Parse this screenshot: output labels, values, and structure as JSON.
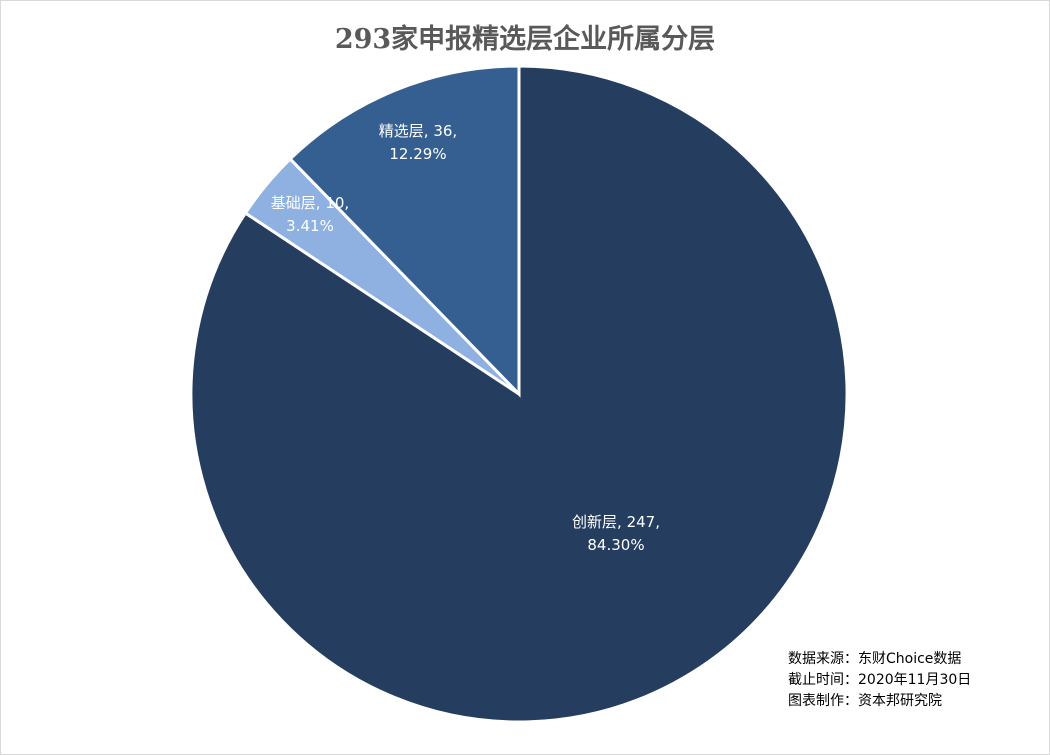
{
  "chart_data": {
    "type": "pie",
    "title": "293家申报精选层企业所属分层",
    "slices": [
      {
        "name": "创新层",
        "value": 247,
        "percent": "84.30%",
        "color": "#253E60"
      },
      {
        "name": "基础层",
        "value": 10,
        "percent": "3.41%",
        "color": "#8EB1E2"
      },
      {
        "name": "精选层",
        "value": 36,
        "percent": "12.29%",
        "color": "#365F91"
      }
    ],
    "start": "12 o'clock",
    "direction": "clockwise"
  },
  "notes": {
    "source": "数据来源：东财Choice数据",
    "cutoff": "截止时间：2020年11月30日",
    "maker": "图表制作：资本邦研究院"
  }
}
